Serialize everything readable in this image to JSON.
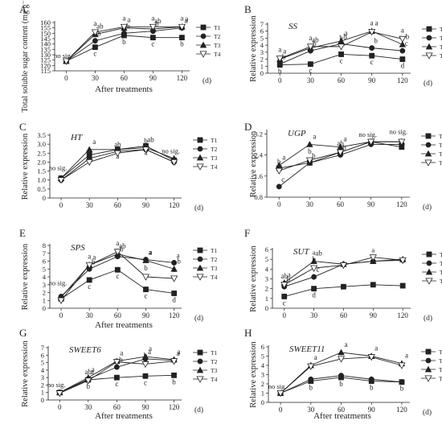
{
  "colors": {
    "ink": "#222222",
    "background": "#ffffff"
  },
  "legend_labels": [
    "T1",
    "T2",
    "T3",
    "T4"
  ],
  "legend_markers": [
    "square-filled",
    "circle-filled",
    "triangle-filled",
    "triangle-down-open"
  ],
  "chart_data": [
    {
      "panel": "A",
      "type": "line",
      "title": "",
      "ylabel": "Total soluble sugar content (mg g⁻¹ FW)",
      "xlabel": "After treatments",
      "x_unit": "(d)",
      "x": [
        0,
        30,
        60,
        90,
        120
      ],
      "xlim": [
        -12,
        128
      ],
      "ylim": [
        115,
        160
      ],
      "yticks": [
        115,
        120,
        125,
        130,
        135,
        140,
        145,
        150,
        155,
        160
      ],
      "ytick_labels": [
        "115",
        "120",
        "125",
        "130",
        "135",
        "140",
        "145",
        "150",
        "155",
        "160"
      ],
      "legend": "right",
      "series": [
        {
          "name": "T1",
          "marker": "square-filled",
          "values": [
            124,
            137,
            148,
            146,
            146
          ],
          "sig": [
            "",
            "c",
            "b",
            "c",
            "b"
          ]
        },
        {
          "name": "T2",
          "marker": "circle-filled",
          "values": [
            124,
            143,
            150,
            152,
            155
          ],
          "sig": [
            "",
            "b",
            "b",
            "b",
            "a"
          ]
        },
        {
          "name": "T3",
          "marker": "triangle-filled",
          "values": [
            124,
            149,
            155,
            154,
            156
          ],
          "sig": [
            "",
            "ab",
            "a",
            "ab",
            "a"
          ]
        },
        {
          "name": "T4",
          "marker": "triangle-down-open",
          "values": [
            124,
            151,
            156,
            156,
            156
          ],
          "sig": [
            "",
            "a",
            "a",
            "a",
            "a"
          ]
        }
      ],
      "annotations": [
        {
          "text": "no sig.",
          "x": 0,
          "y": 127
        }
      ]
    },
    {
      "panel": "B",
      "type": "line",
      "title": "SS",
      "ylabel": "Relative expression",
      "xlabel": "",
      "x_unit": "(d)",
      "x": [
        0,
        30,
        60,
        90,
        120
      ],
      "xlim": [
        -12,
        128
      ],
      "ylim": [
        0,
        7
      ],
      "yticks": [
        0,
        1,
        2,
        3,
        4,
        5,
        6,
        7
      ],
      "ytick_labels": [
        "0",
        "1",
        "2",
        "3",
        "4",
        "5",
        "6",
        "7"
      ],
      "legend": "right",
      "series": [
        {
          "name": "T1",
          "marker": "square-filled",
          "values": [
            1.2,
            1.3,
            2.7,
            2.5,
            2.0
          ],
          "sig": [
            "b",
            "c",
            "c",
            "c",
            "d"
          ]
        },
        {
          "name": "T2",
          "marker": "circle-filled",
          "values": [
            1.3,
            3.2,
            4.2,
            3.6,
            3.2
          ],
          "sig": [
            "b",
            "b",
            "b",
            "b",
            "c"
          ]
        },
        {
          "name": "T3",
          "marker": "triangle-filled",
          "values": [
            2.0,
            3.6,
            4.6,
            6.0,
            4.1
          ],
          "sig": [
            "a",
            "ab",
            "a",
            "a",
            "b"
          ]
        },
        {
          "name": "T4",
          "marker": "triangle-down-open",
          "values": [
            2.1,
            3.8,
            3.8,
            5.9,
            4.9
          ],
          "sig": [
            "a",
            "a",
            "b",
            "a",
            "a"
          ]
        }
      ]
    },
    {
      "panel": "C",
      "type": "line",
      "title": "HT",
      "ylabel": "Relative expression",
      "xlabel": "",
      "x_unit": "(d)",
      "x": [
        0,
        30,
        60,
        90,
        120
      ],
      "xlim": [
        -12,
        128
      ],
      "ylim": [
        0,
        3.5
      ],
      "yticks": [
        0,
        0.5,
        1,
        1.5,
        2,
        2.5,
        3,
        3.5
      ],
      "ytick_labels": [
        "0",
        "0.5",
        "1.0",
        "1.5",
        "2.0",
        "2.5",
        "3.0",
        "3.5"
      ],
      "legend": "right",
      "series": [
        {
          "name": "T1",
          "marker": "square-filled",
          "values": [
            1.1,
            2.4,
            2.7,
            2.9,
            2.1
          ],
          "sig": [
            "",
            "b",
            "a",
            "a",
            ""
          ]
        },
        {
          "name": "T2",
          "marker": "circle-filled",
          "values": [
            1.0,
            2.2,
            2.6,
            2.7,
            2.0
          ],
          "sig": [
            "",
            "",
            "",
            "",
            ""
          ]
        },
        {
          "name": "T3",
          "marker": "triangle-filled",
          "values": [
            1.1,
            2.7,
            2.7,
            2.8,
            2.2
          ],
          "sig": [
            "",
            "a",
            "",
            "ab",
            ""
          ]
        },
        {
          "name": "T4",
          "marker": "triangle-down-open",
          "values": [
            1.0,
            2.0,
            2.5,
            2.7,
            2.0
          ],
          "sig": [
            "",
            "c",
            "ab",
            "b",
            ""
          ]
        }
      ],
      "annotations": [
        {
          "text": "no sig.",
          "x": 0,
          "y": 1.55
        },
        {
          "text": "no sig.",
          "x": 120,
          "y": 2.5
        }
      ]
    },
    {
      "panel": "D",
      "type": "line",
      "title": "UGP",
      "ylabel": "Relative expression",
      "xlabel": "",
      "x_unit": "(d)",
      "x": [
        0,
        30,
        60,
        90,
        120
      ],
      "xlim": [
        -12,
        128
      ],
      "ylim": [
        0.8,
        3.3
      ],
      "yticks": [
        0.8,
        1.6,
        2.4,
        3.2
      ],
      "ytick_labels": [
        "0.8",
        "1.6",
        "2.4",
        "3.2"
      ],
      "legend": "right",
      "series": [
        {
          "name": "T1",
          "marker": "square-filled",
          "values": [
            1.9,
            2.1,
            2.5,
            2.9,
            2.7
          ],
          "sig": [
            "",
            "",
            "",
            "",
            ""
          ]
        },
        {
          "name": "T2",
          "marker": "circle-filled",
          "values": [
            1.2,
            2.1,
            2.4,
            2.8,
            2.8
          ],
          "sig": [
            "c",
            "b",
            "b",
            "",
            ""
          ]
        },
        {
          "name": "T3",
          "marker": "triangle-filled",
          "values": [
            2.0,
            2.8,
            2.7,
            2.9,
            2.9
          ],
          "sig": [
            "a",
            "a",
            "a",
            "",
            ""
          ]
        },
        {
          "name": "T4",
          "marker": "triangle-down-open",
          "values": [
            1.8,
            2.2,
            2.5,
            2.9,
            2.9
          ],
          "sig": [
            "b",
            "b",
            "ab",
            "",
            ""
          ]
        }
      ],
      "annotations": [
        {
          "text": "no sig.",
          "x": 90,
          "y": 3.08
        },
        {
          "text": "no sig.",
          "x": 120,
          "y": 3.2
        }
      ]
    },
    {
      "panel": "E",
      "type": "line",
      "title": "SPS",
      "ylabel": "Relative expression",
      "xlabel": "After treatments",
      "x_unit": "(d)",
      "x": [
        0,
        30,
        60,
        90,
        120
      ],
      "xlim": [
        -12,
        128
      ],
      "ylim": [
        0,
        8
      ],
      "yticks": [
        0,
        1,
        2,
        3,
        4,
        5,
        6,
        7,
        8
      ],
      "ytick_labels": [
        "0",
        "1",
        "2",
        "3",
        "4",
        "5",
        "6",
        "7",
        "8"
      ],
      "legend": "right",
      "series": [
        {
          "name": "T1",
          "marker": "square-filled",
          "values": [
            1.2,
            3.6,
            4.9,
            2.4,
            1.9
          ],
          "sig": [
            "",
            "c",
            "c",
            "c",
            "d"
          ]
        },
        {
          "name": "T2",
          "marker": "circle-filled",
          "values": [
            1.5,
            5.0,
            6.6,
            6.2,
            5.8
          ],
          "sig": [
            "",
            "b",
            "b",
            "a",
            "a"
          ]
        },
        {
          "name": "T3",
          "marker": "triangle-filled",
          "values": [
            1.4,
            5.5,
            6.9,
            6.1,
            5.0
          ],
          "sig": [
            "",
            "a",
            "ab",
            "a",
            "b"
          ]
        },
        {
          "name": "T4",
          "marker": "triangle-down-open",
          "values": [
            1.0,
            5.5,
            7.2,
            4.0,
            3.8
          ],
          "sig": [
            "",
            "a",
            "a",
            "b",
            "c"
          ]
        }
      ],
      "annotations": [
        {
          "text": "no sig.",
          "x": 0,
          "y": 2.9
        }
      ]
    },
    {
      "panel": "F",
      "type": "line",
      "title": "SUT",
      "ylabel": "Relative expression",
      "xlabel": "",
      "x_unit": "(d)",
      "x": [
        0,
        30,
        60,
        90,
        120
      ],
      "xlim": [
        -12,
        128
      ],
      "ylim": [
        0,
        6
      ],
      "yticks": [
        0,
        1,
        2,
        3,
        4,
        5,
        6
      ],
      "ytick_labels": [
        "0",
        "1",
        "2",
        "3",
        "4",
        "5",
        "6"
      ],
      "legend": "right",
      "series": [
        {
          "name": "T1",
          "marker": "square-filled",
          "values": [
            1.2,
            2.0,
            2.2,
            2.4,
            2.3
          ],
          "sig": [
            "c",
            "d",
            "",
            "",
            ""
          ]
        },
        {
          "name": "T2",
          "marker": "circle-filled",
          "values": [
            2.2,
            3.2,
            4.5,
            4.8,
            4.9
          ],
          "sig": [
            "b",
            "c",
            "",
            "",
            ""
          ]
        },
        {
          "name": "T3",
          "marker": "triangle-filled",
          "values": [
            2.6,
            4.8,
            4.5,
            4.8,
            5.0
          ],
          "sig": [
            "a",
            "ab",
            "",
            "",
            ""
          ]
        },
        {
          "name": "T4",
          "marker": "triangle-down-open",
          "values": [
            2.4,
            4.1,
            4.4,
            5.2,
            4.9
          ],
          "sig": [
            "ab",
            "b",
            "",
            "",
            ""
          ]
        }
      ],
      "annotations": [
        {
          "text": "a",
          "x": 30,
          "y": 5.45
        },
        {
          "text": "a",
          "x": 90,
          "y": 5.7
        }
      ]
    },
    {
      "panel": "G",
      "type": "line",
      "title": "SWEET6",
      "ylabel": "Relative expression",
      "xlabel": "After treatments",
      "x_unit": "(d)",
      "x": [
        0,
        30,
        60,
        90,
        120
      ],
      "xlim": [
        -12,
        128
      ],
      "ylim": [
        0,
        7
      ],
      "yticks": [
        0,
        1,
        2,
        3,
        4,
        5,
        6,
        7
      ],
      "ytick_labels": [
        "0",
        "1",
        "2",
        "3",
        "4",
        "5",
        "6",
        "7"
      ],
      "legend": "right",
      "series": [
        {
          "name": "T1",
          "marker": "square-filled",
          "values": [
            1.0,
            2.7,
            3.0,
            3.2,
            3.3
          ],
          "sig": [
            "",
            "b",
            "c",
            "c",
            "b"
          ]
        },
        {
          "name": "T2",
          "marker": "circle-filled",
          "values": [
            1.0,
            2.8,
            4.4,
            5.5,
            5.3
          ],
          "sig": [
            "",
            "a",
            "b",
            "a",
            "a"
          ]
        },
        {
          "name": "T3",
          "marker": "triangle-filled",
          "values": [
            1.0,
            3.0,
            5.2,
            5.8,
            5.4
          ],
          "sig": [
            "",
            "a",
            "a",
            "a",
            "a"
          ]
        },
        {
          "name": "T4",
          "marker": "triangle-down-open",
          "values": [
            0.9,
            2.6,
            5.1,
            4.8,
            5.2
          ],
          "sig": [
            "",
            "ab",
            "",
            "b",
            ""
          ]
        }
      ],
      "annotations": [
        {
          "text": "no sig.",
          "x": 0,
          "y": 1.75
        }
      ]
    },
    {
      "panel": "H",
      "type": "line",
      "title": "SWEET11",
      "ylabel": "Relative expression",
      "xlabel": "After treatments",
      "x_unit": "(d)",
      "x": [
        0,
        30,
        60,
        90,
        120
      ],
      "xlim": [
        -12,
        128
      ],
      "ylim": [
        0,
        6
      ],
      "yticks": [
        0,
        1,
        2,
        3,
        4,
        5,
        6
      ],
      "ytick_labels": [
        "0",
        "1",
        "2",
        "3",
        "4",
        "5",
        "6"
      ],
      "legend": "right",
      "series": [
        {
          "name": "T1",
          "marker": "square-filled",
          "values": [
            1.0,
            2.3,
            2.7,
            2.3,
            2.2
          ],
          "sig": [
            "",
            "b",
            "b",
            "b",
            "b"
          ]
        },
        {
          "name": "T2",
          "marker": "circle-filled",
          "values": [
            1.0,
            2.5,
            2.9,
            2.5,
            2.2
          ],
          "sig": [
            "",
            "",
            "",
            "",
            ""
          ]
        },
        {
          "name": "T3",
          "marker": "triangle-filled",
          "values": [
            1.0,
            4.0,
            5.4,
            5.0,
            4.2
          ],
          "sig": [
            "",
            "a",
            "a",
            "a",
            "a"
          ]
        },
        {
          "name": "T4",
          "marker": "triangle-down-open",
          "values": [
            1.0,
            3.9,
            4.7,
            4.9,
            4.0
          ],
          "sig": [
            "",
            "",
            "",
            "",
            ""
          ]
        }
      ],
      "annotations": [
        {
          "text": "no sig.",
          "x": 0,
          "y": 1.5
        }
      ]
    }
  ]
}
